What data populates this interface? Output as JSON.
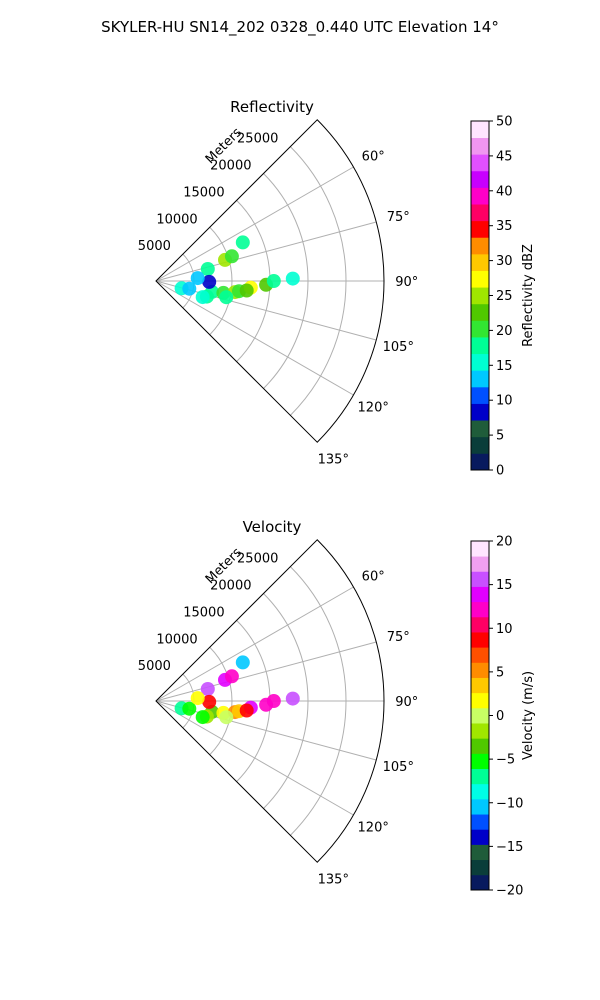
{
  "figure": {
    "title": "SKYLER-HU  SN14_202  0328_0.440 UTC Elevation 14°"
  },
  "chart_data": [
    {
      "type": "polar-sector",
      "title": "Reflectivity",
      "range_label": "Meters",
      "range_max": 30000,
      "range_ticks": [
        5000,
        10000,
        15000,
        20000,
        25000
      ],
      "theta_range": [
        45,
        135
      ],
      "theta_ticks": [
        60,
        75,
        90,
        105,
        120,
        135
      ],
      "theta_tick_labels": [
        "60°",
        "75°",
        "90°",
        "105°",
        "120°",
        "135°"
      ],
      "grid": true,
      "colorbar": {
        "label": "Reflectivity dBZ",
        "min": 0,
        "max": 50,
        "ticks": [
          0,
          5,
          10,
          15,
          20,
          25,
          30,
          35,
          40,
          45,
          50
        ],
        "tick_labels": [
          "0",
          "5",
          "10",
          "15",
          "20",
          "25",
          "30",
          "35",
          "40",
          "45",
          "50"
        ],
        "stops": [
          "#081a5e",
          "#0a3d3a",
          "#1f5c3a",
          "#0000c8",
          "#0050ff",
          "#00c8ff",
          "#00ffd2",
          "#00ff96",
          "#32e632",
          "#50c800",
          "#a0e600",
          "#ffff00",
          "#ffc800",
          "#ff8c00",
          "#ff0000",
          "#ff0064",
          "#ff00c8",
          "#c800ff",
          "#e150ff",
          "#f096f0",
          "#ffe6ff"
        ]
      },
      "echoes": [
        {
          "range": 7500,
          "theta": 101,
          "value": 18
        },
        {
          "range": 9000,
          "theta": 100,
          "value": 21
        },
        {
          "range": 10500,
          "theta": 98,
          "value": 24
        },
        {
          "range": 11000,
          "theta": 97,
          "value": 20
        },
        {
          "range": 9500,
          "theta": 103,
          "value": 19
        },
        {
          "range": 7000,
          "theta": 107,
          "value": 17
        },
        {
          "range": 6500,
          "theta": 109,
          "value": 15
        },
        {
          "range": 12500,
          "theta": 94,
          "value": 28
        },
        {
          "range": 14500,
          "theta": 92,
          "value": 22
        },
        {
          "range": 15500,
          "theta": 90,
          "value": 18
        },
        {
          "range": 12000,
          "theta": 96,
          "value": 23
        },
        {
          "range": 9500,
          "theta": 73,
          "value": 26
        },
        {
          "range": 10500,
          "theta": 72,
          "value": 21
        },
        {
          "range": 12500,
          "theta": 66,
          "value": 18
        },
        {
          "range": 7000,
          "theta": 77,
          "value": 17
        },
        {
          "range": 3500,
          "theta": 106,
          "value": 15
        },
        {
          "range": 4500,
          "theta": 103,
          "value": 13
        },
        {
          "range": 7000,
          "theta": 91,
          "value": 8
        },
        {
          "range": 5500,
          "theta": 86,
          "value": 12
        },
        {
          "range": 18000,
          "theta": 89,
          "value": 15
        }
      ]
    },
    {
      "type": "polar-sector",
      "title": "Velocity",
      "range_label": "Meters",
      "range_max": 30000,
      "range_ticks": [
        5000,
        10000,
        15000,
        20000,
        25000
      ],
      "theta_range": [
        45,
        135
      ],
      "theta_ticks": [
        60,
        75,
        90,
        105,
        120,
        135
      ],
      "theta_tick_labels": [
        "60°",
        "75°",
        "90°",
        "105°",
        "120°",
        "135°"
      ],
      "grid": true,
      "colorbar": {
        "label": "Velocity (m/s)",
        "min": -20,
        "max": 20,
        "ticks": [
          -20,
          -15,
          -10,
          -5,
          0,
          5,
          10,
          15,
          20
        ],
        "tick_labels": [
          "−20",
          "−15",
          "−10",
          "−5",
          "0",
          "5",
          "10",
          "15",
          "20"
        ],
        "stops": [
          "#081a5e",
          "#0a3d3a",
          "#1f5c3a",
          "#0000c8",
          "#0050ff",
          "#00c8ff",
          "#00ffe6",
          "#00ff96",
          "#00ff00",
          "#50c800",
          "#a0e600",
          "#c8ff64",
          "#ffff00",
          "#ffc800",
          "#ff8c00",
          "#ff5000",
          "#ff0000",
          "#ff0064",
          "#ff00c8",
          "#e100ff",
          "#c850ff",
          "#f0a0f0",
          "#ffe6ff"
        ]
      },
      "echoes": [
        {
          "range": 7500,
          "theta": 101,
          "value": -4
        },
        {
          "range": 9000,
          "theta": 100,
          "value": 1
        },
        {
          "range": 10500,
          "theta": 98,
          "value": 6
        },
        {
          "range": 11000,
          "theta": 97,
          "value": 4
        },
        {
          "range": 9500,
          "theta": 103,
          "value": 0
        },
        {
          "range": 7000,
          "theta": 107,
          "value": -2
        },
        {
          "range": 6500,
          "theta": 109,
          "value": -5
        },
        {
          "range": 12500,
          "theta": 94,
          "value": 14
        },
        {
          "range": 14500,
          "theta": 92,
          "value": 13
        },
        {
          "range": 15500,
          "theta": 90,
          "value": 12
        },
        {
          "range": 12000,
          "theta": 96,
          "value": 8
        },
        {
          "range": 9500,
          "theta": 73,
          "value": 14
        },
        {
          "range": 10500,
          "theta": 72,
          "value": 13
        },
        {
          "range": 12500,
          "theta": 66,
          "value": -11
        },
        {
          "range": 7000,
          "theta": 77,
          "value": 15
        },
        {
          "range": 3500,
          "theta": 106,
          "value": -7
        },
        {
          "range": 4500,
          "theta": 103,
          "value": -6
        },
        {
          "range": 7000,
          "theta": 91,
          "value": 9
        },
        {
          "range": 5500,
          "theta": 86,
          "value": 2
        },
        {
          "range": 18000,
          "theta": 89,
          "value": 16
        }
      ]
    }
  ]
}
